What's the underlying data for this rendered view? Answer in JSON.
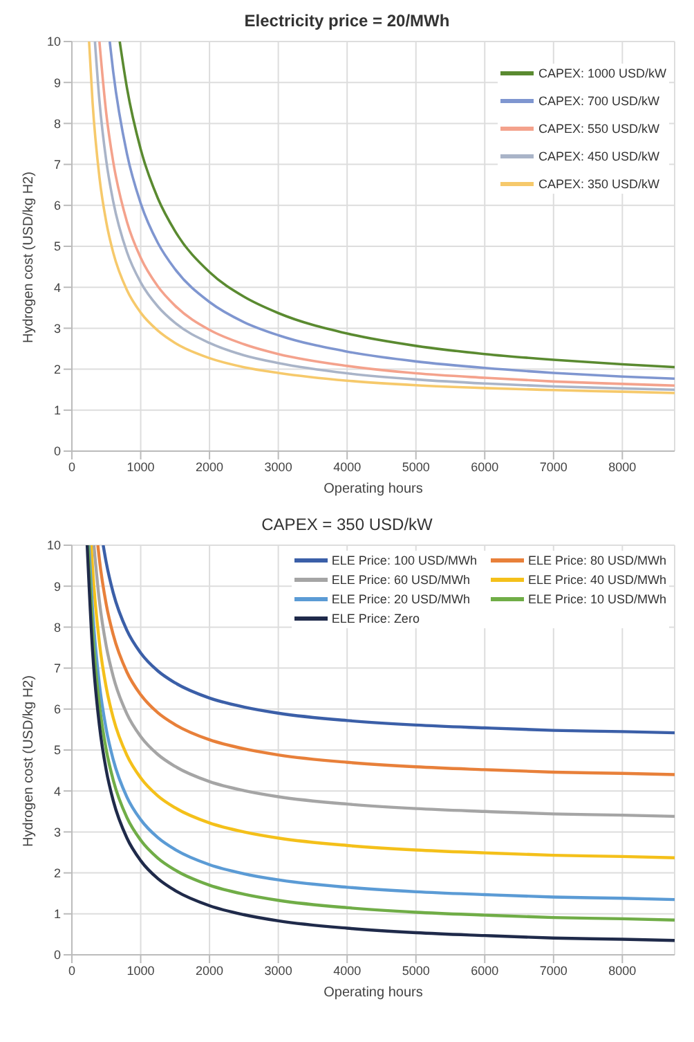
{
  "chart_data": [
    {
      "type": "line",
      "title": "Electricity price = 20/MWh",
      "xlabel": "Operating hours",
      "ylabel": "Hydrogen cost (USD/kg H2)",
      "xlim": [
        0,
        8760
      ],
      "xticks": [
        0,
        1000,
        2000,
        3000,
        4000,
        5000,
        6000,
        7000,
        8000
      ],
      "ylim": [
        0,
        10
      ],
      "yticks": [
        0,
        1,
        2,
        3,
        4,
        5,
        6,
        7,
        8,
        9,
        10
      ],
      "grid": true,
      "legend": "top right",
      "series": [
        {
          "name": "CAPEX: 1000 USD/kW",
          "color": "#5a8a30",
          "x": [
            695,
            800,
            1000,
            1250,
            1500,
            2000,
            2500,
            3000,
            4000,
            5000,
            6000,
            7000,
            8000,
            8760
          ],
          "values": [
            10,
            8.87,
            7.37,
            6.17,
            5.37,
            4.37,
            3.77,
            3.37,
            2.87,
            2.57,
            2.37,
            2.23,
            2.12,
            2.05
          ]
        },
        {
          "name": "CAPEX: 700 USD/kW",
          "color": "#7f96d0",
          "x": [
            550,
            600,
            800,
            1000,
            1250,
            1500,
            2000,
            2500,
            3000,
            4000,
            5000,
            6000,
            7000,
            8000,
            8760
          ],
          "values": [
            10,
            9.27,
            7.26,
            6.05,
            5.08,
            4.44,
            3.64,
            3.15,
            2.83,
            2.43,
            2.19,
            2.03,
            1.91,
            1.82,
            1.77
          ]
        },
        {
          "name": "CAPEX: 550 USD/kW",
          "color": "#f4a28c",
          "x": [
            400,
            500,
            600,
            800,
            1000,
            1250,
            1500,
            2000,
            2500,
            3000,
            4000,
            5000,
            6000,
            7000,
            8000,
            8760
          ],
          "values": [
            10,
            8.24,
            7.07,
            5.6,
            4.72,
            4.02,
            3.55,
            2.96,
            2.61,
            2.37,
            2.08,
            1.9,
            1.79,
            1.7,
            1.64,
            1.6
          ]
        },
        {
          "name": "CAPEX: 450 USD/kW",
          "color": "#a9b4c8",
          "x": [
            335,
            400,
            500,
            600,
            800,
            1000,
            1250,
            1500,
            2000,
            2500,
            3000,
            4000,
            5000,
            6000,
            7000,
            8000,
            8760
          ],
          "values": [
            10,
            8.56,
            7.08,
            6.1,
            4.86,
            4.12,
            3.53,
            3.13,
            2.64,
            2.34,
            2.15,
            1.9,
            1.75,
            1.65,
            1.58,
            1.53,
            1.5
          ]
        },
        {
          "name": "CAPEX: 350 USD/kW",
          "color": "#f6c96b",
          "x": [
            250,
            300,
            400,
            500,
            600,
            800,
            1000,
            1250,
            1500,
            2000,
            2500,
            3000,
            4000,
            5000,
            6000,
            7000,
            8000,
            8760
          ],
          "values": [
            10,
            8.53,
            6.69,
            5.59,
            4.85,
            3.93,
            3.38,
            2.94,
            2.64,
            2.27,
            2.05,
            1.91,
            1.72,
            1.61,
            1.54,
            1.49,
            1.45,
            1.42
          ]
        }
      ]
    },
    {
      "type": "line",
      "title": "CAPEX = 350 USD/kW",
      "xlabel": "Operating hours",
      "ylabel": "Hydrogen cost (USD/kg H2)",
      "xlim": [
        0,
        8760
      ],
      "xticks": [
        0,
        1000,
        2000,
        3000,
        4000,
        5000,
        6000,
        7000,
        8000
      ],
      "ylim": [
        0,
        10
      ],
      "yticks": [
        0,
        1,
        2,
        3,
        4,
        5,
        6,
        7,
        8,
        9,
        10
      ],
      "grid": true,
      "legend": "top right",
      "series": [
        {
          "name": "ELE Price: 100 USD/MWh",
          "color": "#3b5fa8",
          "x": [
            455,
            500,
            600,
            800,
            1000,
            1250,
            1500,
            2000,
            2500,
            3000,
            4000,
            5000,
            6000,
            7000,
            8000,
            8760
          ],
          "values": [
            10,
            9.57,
            8.84,
            7.92,
            7.37,
            6.93,
            6.64,
            6.27,
            6.05,
            5.9,
            5.72,
            5.61,
            5.54,
            5.48,
            5.45,
            5.42
          ]
        },
        {
          "name": "ELE Price: 80 USD/MWh",
          "color": "#e8803a",
          "x": [
            377,
            400,
            500,
            600,
            800,
            1000,
            1250,
            1500,
            2000,
            2500,
            3000,
            4000,
            5000,
            6000,
            7000,
            8000,
            8760
          ],
          "values": [
            10,
            9.65,
            8.55,
            7.82,
            6.9,
            6.35,
            5.91,
            5.62,
            5.25,
            5.03,
            4.88,
            4.7,
            4.59,
            4.52,
            4.46,
            4.43,
            4.4
          ]
        },
        {
          "name": "ELE Price: 60 USD/MWh",
          "color": "#a5a5a5",
          "x": [
            320,
            400,
            500,
            600,
            800,
            1000,
            1250,
            1500,
            2000,
            2500,
            3000,
            4000,
            5000,
            6000,
            7000,
            8000,
            8760
          ],
          "values": [
            10,
            8.63,
            7.53,
            6.8,
            5.88,
            5.33,
            4.89,
            4.6,
            4.23,
            4.01,
            3.86,
            3.68,
            3.57,
            3.5,
            3.44,
            3.41,
            3.38
          ]
        },
        {
          "name": "ELE Price: 40 USD/MWh",
          "color": "#f4c01a",
          "x": [
            280,
            300,
            400,
            500,
            600,
            800,
            1000,
            1250,
            1500,
            2000,
            2500,
            3000,
            4000,
            5000,
            6000,
            7000,
            8000,
            8760
          ],
          "values": [
            10,
            9.45,
            7.62,
            6.52,
            5.79,
            4.87,
            4.32,
            3.88,
            3.59,
            3.22,
            3.0,
            2.85,
            2.67,
            2.56,
            2.49,
            2.43,
            2.4,
            2.37
          ]
        },
        {
          "name": "ELE Price: 20 USD/MWh",
          "color": "#5b9bd5",
          "x": [
            247,
            300,
            400,
            500,
            600,
            800,
            1000,
            1250,
            1500,
            2000,
            2500,
            3000,
            4000,
            5000,
            6000,
            7000,
            8000,
            8760
          ],
          "values": [
            10,
            8.43,
            6.6,
            5.5,
            4.77,
            3.85,
            3.3,
            2.86,
            2.57,
            2.2,
            1.98,
            1.83,
            1.65,
            1.54,
            1.47,
            1.41,
            1.38,
            1.35
          ]
        },
        {
          "name": "ELE Price: 10 USD/MWh",
          "color": "#70ad47",
          "x": [
            234,
            300,
            400,
            500,
            600,
            800,
            1000,
            1250,
            1500,
            2000,
            2500,
            3000,
            4000,
            5000,
            6000,
            7000,
            8000,
            8760
          ],
          "values": [
            10,
            7.93,
            6.1,
            5.0,
            4.27,
            3.35,
            2.8,
            2.36,
            2.07,
            1.7,
            1.48,
            1.33,
            1.15,
            1.04,
            0.97,
            0.91,
            0.88,
            0.85
          ]
        },
        {
          "name": "ELE Price: Zero",
          "color": "#1f2a4a",
          "x": [
            222,
            300,
            400,
            500,
            600,
            800,
            1000,
            1250,
            1500,
            2000,
            2500,
            3000,
            4000,
            5000,
            6000,
            7000,
            8000,
            8760
          ],
          "values": [
            10,
            7.43,
            5.6,
            4.5,
            3.77,
            2.85,
            2.3,
            1.86,
            1.57,
            1.2,
            0.98,
            0.83,
            0.65,
            0.54,
            0.47,
            0.41,
            0.38,
            0.35
          ]
        }
      ]
    }
  ]
}
